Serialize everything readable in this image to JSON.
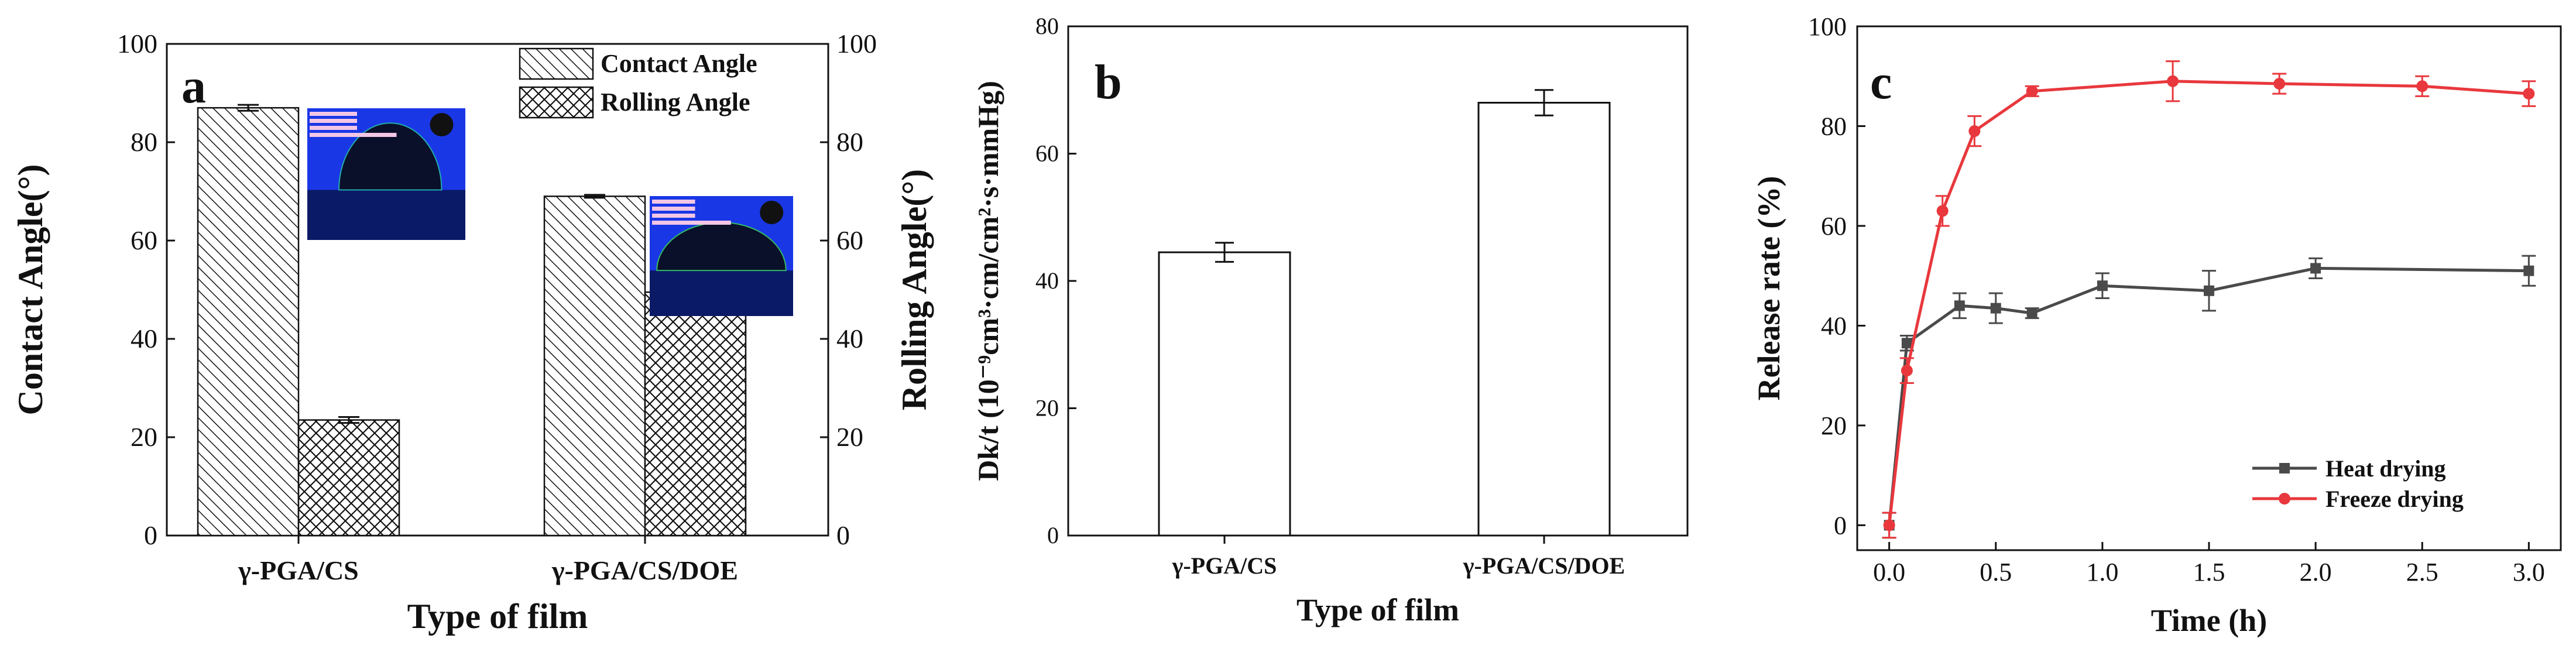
{
  "chart_data": [
    {
      "panel": "a",
      "type": "bar",
      "categories": [
        "γ-PGA/CS",
        "γ-PGA/CS/DOE"
      ],
      "series": [
        {
          "name": "Contact Angle",
          "values": [
            87.0,
            69.0
          ],
          "errors": [
            0.6,
            0.3
          ],
          "axis": "left",
          "pattern": "hatch-diag"
        },
        {
          "name": "Rolling Angle",
          "values": [
            23.5,
            49.5
          ],
          "errors": [
            0.6,
            0.3
          ],
          "axis": "right",
          "pattern": "crosshatch"
        }
      ],
      "xlabel": "Type of film",
      "ylabel": "Contact Angle(°)",
      "ylabel_right": "Rolling Angle(°)",
      "ylim": [
        0,
        100
      ],
      "yticks": [
        0,
        20,
        40,
        60,
        80,
        100
      ],
      "yticks_right": [
        0,
        20,
        40,
        60,
        80,
        100
      ],
      "legend_position": "top-right",
      "insets": [
        "water-droplet-photo-1",
        "water-droplet-photo-2"
      ],
      "colors": {
        "bar_fill": "#ffffff",
        "stroke": "#111111",
        "inset_blue": "#1a37e6",
        "inset_dark": "#0a1a66"
      }
    },
    {
      "panel": "b",
      "type": "bar",
      "categories": [
        "γ-PGA/CS",
        "γ-PGA/CS/DOE"
      ],
      "series": [
        {
          "values": [
            44.5,
            68.0
          ],
          "errors": [
            1.5,
            2.0
          ]
        }
      ],
      "xlabel": "Type of film",
      "ylabel": "Dk/t (10⁻⁹cm³·cm/cm²·s·mmHg)",
      "ylim": [
        0,
        80
      ],
      "yticks": [
        0,
        20,
        40,
        60,
        80
      ],
      "colors": {
        "bar_fill": "#ffffff",
        "stroke": "#111111"
      }
    },
    {
      "panel": "c",
      "type": "line",
      "series": [
        {
          "name": "Heat drying",
          "color": "#4a4a4a",
          "marker": "square",
          "x": [
            0.0,
            0.083,
            0.33,
            0.5,
            0.67,
            1.0,
            1.5,
            2.0,
            3.0
          ],
          "y": [
            0.0,
            36.5,
            44.0,
            43.5,
            42.5,
            48.0,
            47.0,
            51.5,
            51.0
          ],
          "errors": [
            2.5,
            1.5,
            2.5,
            3.0,
            1.0,
            2.5,
            4.0,
            2.0,
            3.0
          ]
        },
        {
          "name": "Freeze drying",
          "color": "#e8383d",
          "marker": "circle",
          "x": [
            0.0,
            0.083,
            0.25,
            0.4,
            0.67,
            1.33,
            1.83,
            2.5,
            3.0
          ],
          "y": [
            0.0,
            31.0,
            63.0,
            79.0,
            87.0,
            89.0,
            88.5,
            88.0,
            86.5
          ],
          "errors": [
            2.5,
            2.5,
            3.0,
            3.0,
            1.0,
            4.0,
            2.0,
            2.0,
            2.5
          ]
        }
      ],
      "xlabel": "Time (h)",
      "ylabel": "Release rate (%)",
      "xlim": [
        -0.15,
        3.15
      ],
      "ylim": [
        -5,
        100
      ],
      "xticks": [
        0.0,
        0.5,
        1.0,
        1.5,
        2.0,
        2.5,
        3.0
      ],
      "yticks": [
        0,
        20,
        40,
        60,
        80,
        100
      ],
      "legend_position": "bottom-right"
    }
  ]
}
